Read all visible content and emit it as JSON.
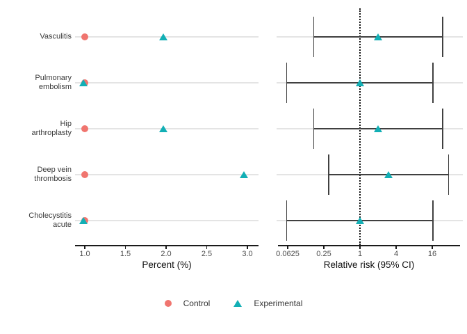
{
  "colors": {
    "control": "#F0756F",
    "experimental": "#12AFB5",
    "gridline": "#E4E4E4",
    "errorbar": "#404040",
    "axis_line": "#1A1A1A",
    "tick_text": "#4D4D4D",
    "category_text": "#3A3A3A",
    "reference_line": "#111111"
  },
  "chart_data": {
    "type": "forest-dotplot",
    "categories": [
      "Vasculitis",
      "Pulmonary embolism",
      "Hip arthroplasty",
      "Deep vein thrombosis",
      "Cholecystitis acute"
    ],
    "category_label_lines": [
      [
        "Vasculitis"
      ],
      [
        "Pulmonary",
        "embolism"
      ],
      [
        "Hip",
        "arthroplasty"
      ],
      [
        "Deep vein",
        "thrombosis"
      ],
      [
        "Cholecystitis",
        "acute"
      ]
    ],
    "left_panel": {
      "xlabel": "Percent (%)",
      "x_ticks": [
        1.0,
        1.5,
        2.0,
        2.5,
        3.0
      ],
      "x_tick_labels": [
        "1.0",
        "1.5",
        "2.0",
        "2.5",
        "3.0"
      ],
      "xlim": [
        0.88,
        3.14
      ],
      "grid": "horizontal-rows-only",
      "series": [
        {
          "name": "Control",
          "marker": "circle",
          "values": [
            1.0,
            1.0,
            1.0,
            1.0,
            1.0
          ]
        },
        {
          "name": "Experimental",
          "marker": "triangle",
          "values": [
            1.97,
            0.98,
            1.97,
            2.96,
            0.98
          ]
        }
      ]
    },
    "right_panel": {
      "xlabel": "Relative risk (95% CI)",
      "scale": "log",
      "log_base": 4,
      "x_ticks": [
        0.0625,
        0.25,
        1,
        4,
        16
      ],
      "x_tick_labels": [
        "0.0625",
        "0.25",
        "1",
        "4",
        "16"
      ],
      "xlim": [
        0.043,
        46
      ],
      "reference_line_x": 1,
      "estimates": [
        {
          "category": "Vasculitis",
          "rr": 2.0,
          "ci_low": 0.17,
          "ci_high": 24
        },
        {
          "category": "Pulmonary embolism",
          "rr": 1.0,
          "ci_low": 0.06,
          "ci_high": 16.5
        },
        {
          "category": "Hip arthroplasty",
          "rr": 2.0,
          "ci_low": 0.17,
          "ci_high": 24
        },
        {
          "category": "Deep vein thrombosis",
          "rr": 3.0,
          "ci_low": 0.3,
          "ci_high": 30
        },
        {
          "category": "Cholecystitis acute",
          "rr": 1.0,
          "ci_low": 0.06,
          "ci_high": 16.5
        }
      ]
    },
    "legend": {
      "position": "bottom-center",
      "items": [
        {
          "label": "Control",
          "marker": "circle"
        },
        {
          "label": "Experimental",
          "marker": "triangle"
        }
      ]
    }
  }
}
